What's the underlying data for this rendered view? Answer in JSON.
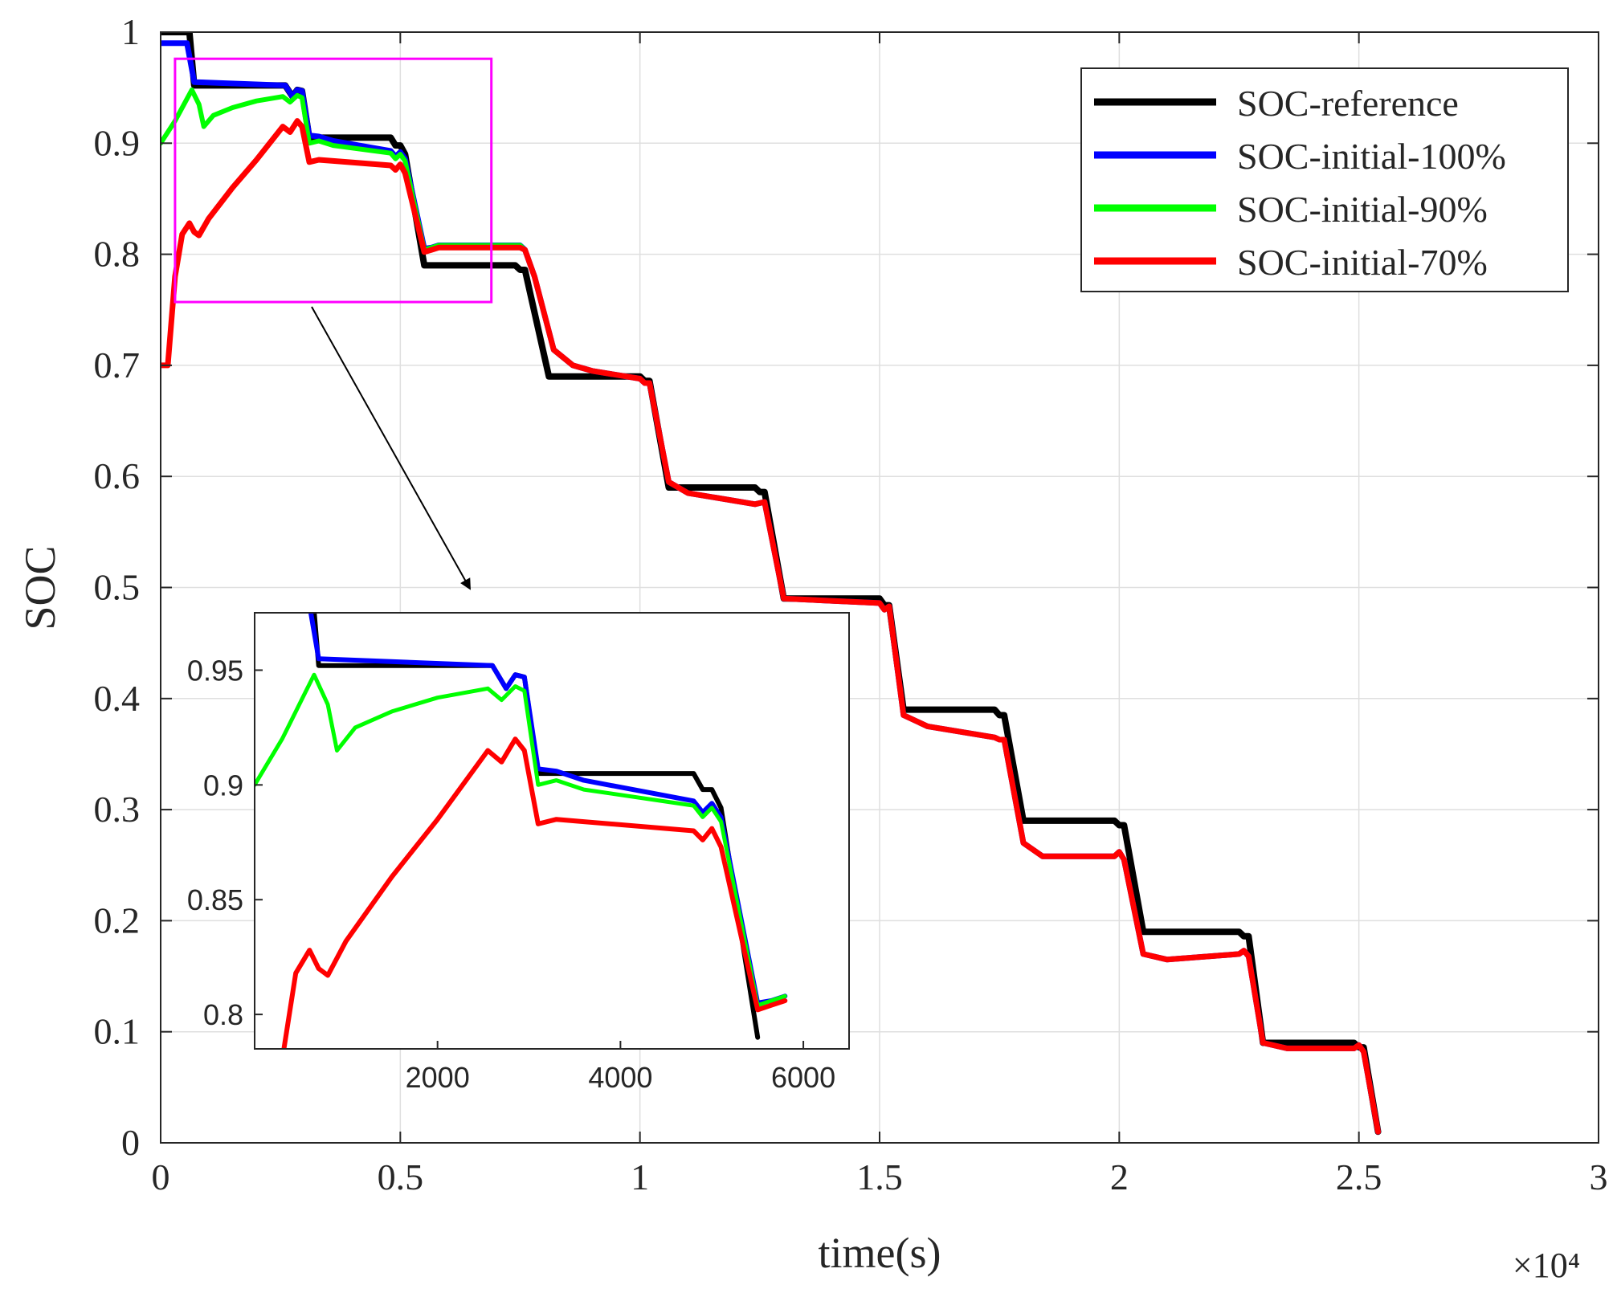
{
  "chart_data": [
    {
      "type": "line",
      "xlabel": "time(s)",
      "ylabel": "SOC",
      "x_exponent_label": "×10⁴",
      "xlim": [
        0,
        30000
      ],
      "ylim": [
        0,
        1
      ],
      "grid": true,
      "legend_position": "top-right",
      "xticks": [
        0,
        5000,
        10000,
        15000,
        20000,
        25000,
        30000
      ],
      "xtick_labels": [
        "0",
        "0.5",
        "1",
        "1.5",
        "2",
        "2.5",
        "3"
      ],
      "yticks": [
        0,
        0.1,
        0.2,
        0.3,
        0.4,
        0.5,
        0.6,
        0.7,
        0.8,
        0.9,
        1
      ],
      "ytick_labels": [
        "0",
        "0.1",
        "0.2",
        "0.3",
        "0.4",
        "0.5",
        "0.6",
        "0.7",
        "0.8",
        "0.9",
        "1"
      ],
      "series": [
        {
          "name": "SOC-reference",
          "color": "#000000",
          "points": [
            [
              0,
              1.0
            ],
            [
              600,
              1.0
            ],
            [
              700,
              0.952
            ],
            [
              2600,
              0.952
            ],
            [
              2750,
              0.942
            ],
            [
              2850,
              0.948
            ],
            [
              2950,
              0.947
            ],
            [
              3100,
              0.905
            ],
            [
              4800,
              0.905
            ],
            [
              4900,
              0.898
            ],
            [
              5000,
              0.898
            ],
            [
              5100,
              0.89
            ],
            [
              5500,
              0.79
            ],
            [
              7400,
              0.79
            ],
            [
              7500,
              0.786
            ],
            [
              7600,
              0.786
            ],
            [
              8100,
              0.69
            ],
            [
              10000,
              0.69
            ],
            [
              10100,
              0.686
            ],
            [
              10200,
              0.686
            ],
            [
              10600,
              0.59
            ],
            [
              12400,
              0.59
            ],
            [
              12500,
              0.586
            ],
            [
              12600,
              0.586
            ],
            [
              13000,
              0.49
            ],
            [
              15000,
              0.49
            ],
            [
              15100,
              0.484
            ],
            [
              15200,
              0.484
            ],
            [
              15500,
              0.39
            ],
            [
              17400,
              0.39
            ],
            [
              17500,
              0.385
            ],
            [
              17600,
              0.385
            ],
            [
              18000,
              0.29
            ],
            [
              19900,
              0.29
            ],
            [
              20000,
              0.286
            ],
            [
              20100,
              0.286
            ],
            [
              20500,
              0.19
            ],
            [
              22500,
              0.19
            ],
            [
              22600,
              0.186
            ],
            [
              22700,
              0.186
            ],
            [
              23000,
              0.09
            ],
            [
              24900,
              0.09
            ],
            [
              25000,
              0.086
            ],
            [
              25100,
              0.086
            ],
            [
              25400,
              0.01
            ]
          ]
        },
        {
          "name": "SOC-initial-100%",
          "color": "#0000ff",
          "points": [
            [
              0,
              0.99
            ],
            [
              300,
              0.99
            ],
            [
              550,
              0.99
            ],
            [
              700,
              0.955
            ],
            [
              2600,
              0.952
            ],
            [
              2750,
              0.942
            ],
            [
              2850,
              0.948
            ],
            [
              2950,
              0.947
            ],
            [
              3100,
              0.907
            ],
            [
              3300,
              0.906
            ],
            [
              3600,
              0.902
            ],
            [
              4800,
              0.893
            ],
            [
              4900,
              0.888
            ],
            [
              5000,
              0.892
            ],
            [
              5100,
              0.886
            ],
            [
              5500,
              0.805
            ],
            [
              5650,
              0.806
            ],
            [
              5800,
              0.808
            ],
            [
              7500,
              0.808
            ],
            [
              7600,
              0.804
            ],
            [
              7800,
              0.78
            ],
            [
              8200,
              0.714
            ],
            [
              8600,
              0.7
            ],
            [
              9000,
              0.695
            ],
            [
              10000,
              0.688
            ],
            [
              10100,
              0.684
            ],
            [
              10200,
              0.684
            ],
            [
              10600,
              0.595
            ],
            [
              11000,
              0.585
            ],
            [
              12400,
              0.575
            ],
            [
              12600,
              0.577
            ],
            [
              13000,
              0.49
            ],
            [
              15000,
              0.486
            ],
            [
              15100,
              0.48
            ],
            [
              15200,
              0.483
            ],
            [
              15500,
              0.385
            ],
            [
              16000,
              0.375
            ],
            [
              17400,
              0.365
            ],
            [
              17500,
              0.363
            ],
            [
              17600,
              0.363
            ],
            [
              18000,
              0.27
            ],
            [
              18400,
              0.258
            ],
            [
              19900,
              0.258
            ],
            [
              20000,
              0.262
            ],
            [
              20100,
              0.255
            ],
            [
              20500,
              0.17
            ],
            [
              21000,
              0.165
            ],
            [
              22500,
              0.17
            ],
            [
              22600,
              0.173
            ],
            [
              22700,
              0.168
            ],
            [
              23000,
              0.09
            ],
            [
              23500,
              0.085
            ],
            [
              24900,
              0.085
            ],
            [
              25000,
              0.088
            ],
            [
              25100,
              0.082
            ],
            [
              25400,
              0.01
            ]
          ]
        },
        {
          "name": "SOC-initial-90%",
          "color": "#00ff00",
          "points": [
            [
              0,
              0.9
            ],
            [
              300,
              0.92
            ],
            [
              650,
              0.948
            ],
            [
              800,
              0.935
            ],
            [
              900,
              0.915
            ],
            [
              1100,
              0.925
            ],
            [
              1500,
              0.932
            ],
            [
              2000,
              0.938
            ],
            [
              2550,
              0.942
            ],
            [
              2700,
              0.937
            ],
            [
              2850,
              0.943
            ],
            [
              2950,
              0.941
            ],
            [
              3100,
              0.9
            ],
            [
              3300,
              0.902
            ],
            [
              3600,
              0.898
            ],
            [
              4800,
              0.891
            ],
            [
              4900,
              0.886
            ],
            [
              5000,
              0.89
            ],
            [
              5100,
              0.884
            ],
            [
              5500,
              0.804
            ],
            [
              5650,
              0.806
            ],
            [
              5800,
              0.808
            ],
            [
              7500,
              0.808
            ],
            [
              7600,
              0.804
            ],
            [
              7800,
              0.78
            ],
            [
              8200,
              0.714
            ],
            [
              8600,
              0.7
            ],
            [
              9000,
              0.695
            ],
            [
              10000,
              0.688
            ],
            [
              10100,
              0.684
            ],
            [
              10200,
              0.684
            ],
            [
              10600,
              0.595
            ],
            [
              11000,
              0.585
            ],
            [
              12400,
              0.575
            ],
            [
              12600,
              0.577
            ],
            [
              13000,
              0.49
            ],
            [
              15000,
              0.486
            ],
            [
              15100,
              0.48
            ],
            [
              15200,
              0.483
            ],
            [
              15500,
              0.385
            ],
            [
              16000,
              0.375
            ],
            [
              17400,
              0.365
            ],
            [
              17500,
              0.363
            ],
            [
              17600,
              0.363
            ],
            [
              18000,
              0.27
            ],
            [
              18400,
              0.258
            ],
            [
              19900,
              0.258
            ],
            [
              20000,
              0.262
            ],
            [
              20100,
              0.255
            ],
            [
              20500,
              0.17
            ],
            [
              21000,
              0.165
            ],
            [
              22500,
              0.17
            ],
            [
              22600,
              0.173
            ],
            [
              22700,
              0.168
            ],
            [
              23000,
              0.09
            ],
            [
              23500,
              0.085
            ],
            [
              24900,
              0.085
            ],
            [
              25000,
              0.088
            ],
            [
              25100,
              0.082
            ],
            [
              25400,
              0.01
            ]
          ]
        },
        {
          "name": "SOC-initial-70%",
          "color": "#ff0000",
          "points": [
            [
              0,
              0.7
            ],
            [
              150,
              0.7
            ],
            [
              300,
              0.78
            ],
            [
              450,
              0.818
            ],
            [
              600,
              0.828
            ],
            [
              700,
              0.82
            ],
            [
              800,
              0.817
            ],
            [
              1000,
              0.832
            ],
            [
              1500,
              0.86
            ],
            [
              2000,
              0.885
            ],
            [
              2550,
              0.915
            ],
            [
              2700,
              0.91
            ],
            [
              2850,
              0.92
            ],
            [
              2950,
              0.915
            ],
            [
              3100,
              0.883
            ],
            [
              3300,
              0.885
            ],
            [
              3600,
              0.884
            ],
            [
              4800,
              0.88
            ],
            [
              4900,
              0.876
            ],
            [
              5000,
              0.881
            ],
            [
              5100,
              0.873
            ],
            [
              5500,
              0.802
            ],
            [
              5650,
              0.804
            ],
            [
              5800,
              0.806
            ],
            [
              7500,
              0.806
            ],
            [
              7600,
              0.804
            ],
            [
              7800,
              0.78
            ],
            [
              8200,
              0.714
            ],
            [
              8600,
              0.7
            ],
            [
              9000,
              0.695
            ],
            [
              10000,
              0.688
            ],
            [
              10100,
              0.684
            ],
            [
              10200,
              0.684
            ],
            [
              10600,
              0.595
            ],
            [
              11000,
              0.585
            ],
            [
              12400,
              0.575
            ],
            [
              12600,
              0.577
            ],
            [
              13000,
              0.49
            ],
            [
              15000,
              0.486
            ],
            [
              15100,
              0.48
            ],
            [
              15200,
              0.483
            ],
            [
              15500,
              0.385
            ],
            [
              16000,
              0.375
            ],
            [
              17400,
              0.365
            ],
            [
              17500,
              0.363
            ],
            [
              17600,
              0.363
            ],
            [
              18000,
              0.27
            ],
            [
              18400,
              0.258
            ],
            [
              19900,
              0.258
            ],
            [
              20000,
              0.262
            ],
            [
              20100,
              0.255
            ],
            [
              20500,
              0.17
            ],
            [
              21000,
              0.165
            ],
            [
              22500,
              0.17
            ],
            [
              22600,
              0.173
            ],
            [
              22700,
              0.168
            ],
            [
              23000,
              0.09
            ],
            [
              23500,
              0.085
            ],
            [
              24900,
              0.085
            ],
            [
              25000,
              0.088
            ],
            [
              25100,
              0.082
            ],
            [
              25400,
              0.01
            ]
          ]
        }
      ]
    },
    {
      "type": "line",
      "role": "zoom-inset",
      "xlim": [
        0,
        6500
      ],
      "ylim": [
        0.785,
        0.975
      ],
      "grid": false,
      "xticks": [
        2000,
        4000,
        6000
      ],
      "xtick_labels": [
        "2000",
        "4000",
        "6000"
      ],
      "yticks": [
        0.8,
        0.85,
        0.9,
        0.95
      ],
      "ytick_labels": [
        "0.8",
        "0.85",
        "0.9",
        "0.95"
      ],
      "series_ref": [
        "SOC-reference",
        "SOC-initial-100%",
        "SOC-initial-90%",
        "SOC-initial-70%"
      ]
    }
  ],
  "zoom_box_color": "#ff00ff"
}
